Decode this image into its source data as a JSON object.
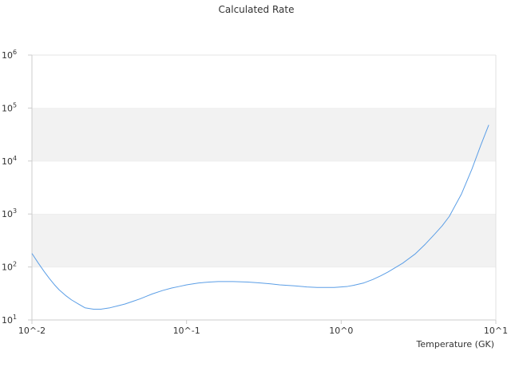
{
  "chart_data": {
    "type": "line",
    "title": "Calculated Rate",
    "xlabel": "Temperature (GK)",
    "ylabel": "",
    "x_scale": "log",
    "y_scale": "log",
    "xlim": [
      0.01,
      10
    ],
    "ylim": [
      10,
      1000000
    ],
    "x_ticks": [
      {
        "value": 0.01,
        "label": "10^-2"
      },
      {
        "value": 0.1,
        "label": "10^-1"
      },
      {
        "value": 1,
        "label": "10^0"
      },
      {
        "value": 10,
        "label": "10^1"
      }
    ],
    "y_ticks": [
      {
        "value": 10,
        "base": "10",
        "exp": "1"
      },
      {
        "value": 100,
        "base": "10",
        "exp": "2"
      },
      {
        "value": 1000,
        "base": "10",
        "exp": "3"
      },
      {
        "value": 10000,
        "base": "10",
        "exp": "4"
      },
      {
        "value": 100000,
        "base": "10",
        "exp": "5"
      },
      {
        "value": 1000000,
        "base": "10",
        "exp": "6"
      }
    ],
    "grid": "horizontal-bands",
    "legend": "none",
    "colors": {
      "line": "#5b9ee6",
      "band": "#f2f2f2",
      "axis": "#cccccc"
    },
    "series": [
      {
        "x": [
          0.01,
          0.011,
          0.012,
          0.013,
          0.014,
          0.015,
          0.0165,
          0.018,
          0.02,
          0.022,
          0.025,
          0.028,
          0.032,
          0.036,
          0.04,
          0.045,
          0.05,
          0.055,
          0.06,
          0.07,
          0.08,
          0.09,
          0.1,
          0.11,
          0.12,
          0.14,
          0.16,
          0.18,
          0.2,
          0.25,
          0.3,
          0.35,
          0.4,
          0.5,
          0.6,
          0.7,
          0.8,
          0.9,
          1.0,
          1.1,
          1.2,
          1.4,
          1.6,
          1.8,
          2.0,
          2.5,
          3.0,
          3.5,
          4.0,
          4.5,
          5.0,
          6.0,
          7.0,
          8.0,
          9.0
        ],
        "y": [
          180,
          118,
          82,
          60,
          46,
          37,
          29,
          24,
          20,
          17,
          16,
          16,
          17,
          18.5,
          20,
          22.5,
          25,
          28,
          31,
          36,
          40,
          43,
          46,
          48,
          50,
          52,
          53,
          53,
          53,
          52,
          50,
          48,
          46,
          44,
          42,
          41,
          41,
          41,
          42,
          43,
          45,
          50,
          58,
          68,
          80,
          118,
          175,
          270,
          410,
          600,
          900,
          2400,
          7000,
          20000,
          48000
        ]
      }
    ]
  }
}
